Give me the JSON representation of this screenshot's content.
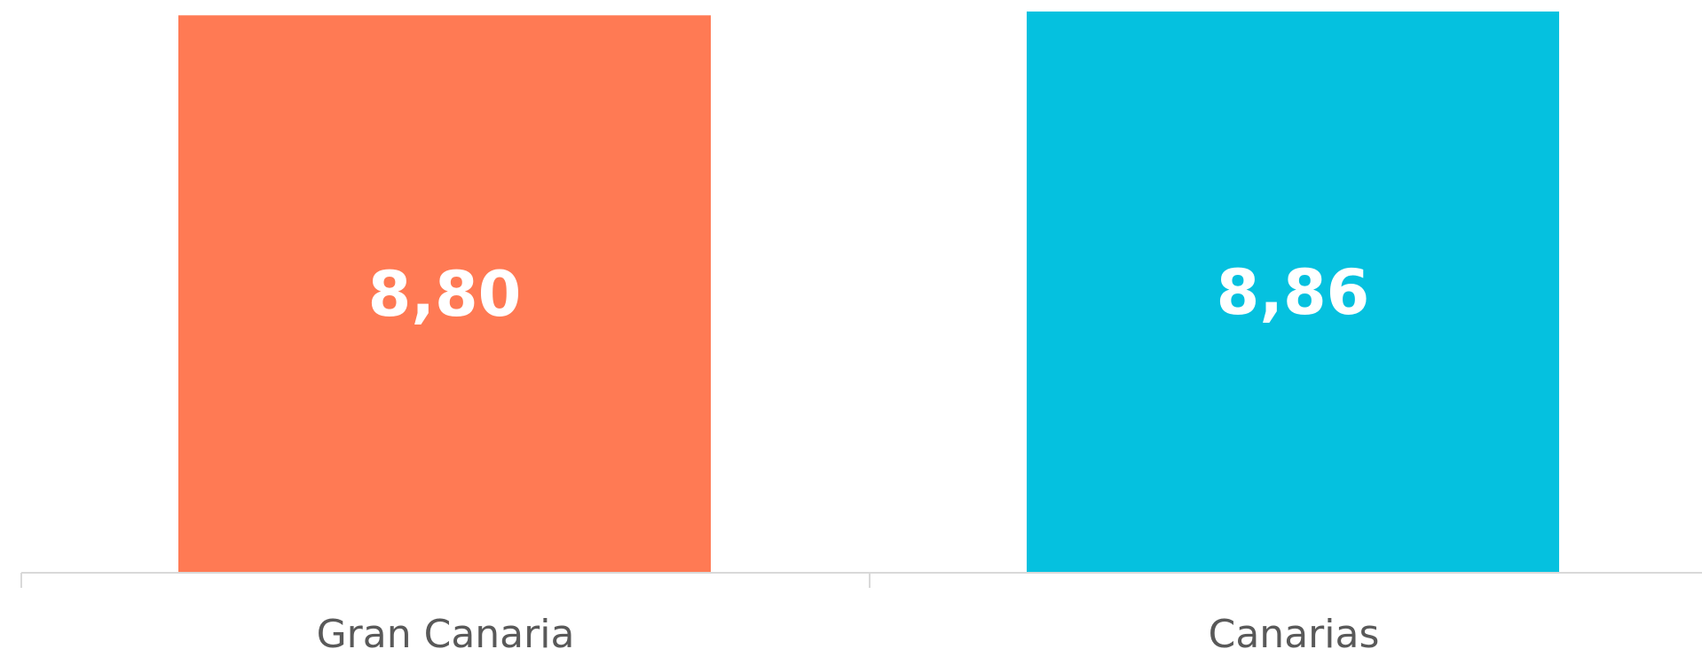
{
  "chart_data": {
    "type": "bar",
    "categories": [
      "Gran Canaria",
      "Canarias"
    ],
    "values": [
      8.8,
      8.86
    ],
    "data_labels": [
      "8,80",
      "8,86"
    ],
    "colors": [
      "#FF7A54",
      "#05C1DF"
    ],
    "axis_color": "#D9D9D9",
    "label_color": "#595959",
    "data_label_color": "#FFFFFF",
    "title": "",
    "xlabel": "",
    "ylabel": "",
    "grid": false,
    "legend": "none"
  }
}
